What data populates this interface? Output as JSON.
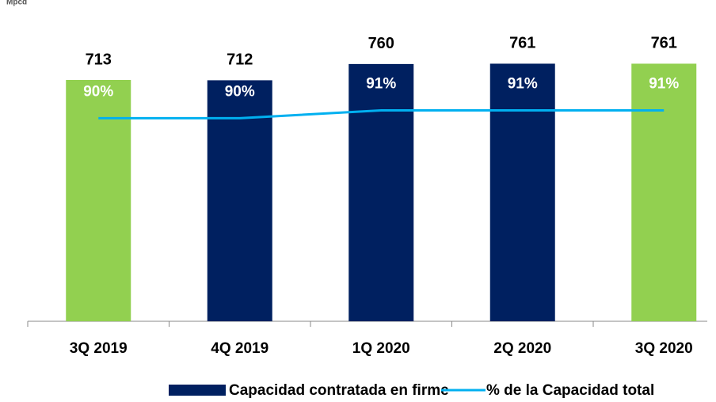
{
  "chart_data": {
    "type": "bar",
    "subtitle": "Mpcd",
    "categories": [
      "3Q 2019",
      "4Q 2019",
      "1Q 2020",
      "2Q 2020",
      "3Q 2020"
    ],
    "series": [
      {
        "name": "Capacidad contratada en firme",
        "color": "#002060",
        "bar_colors": [
          "#92d050",
          "#002060",
          "#002060",
          "#002060",
          "#92d050"
        ],
        "values": [
          713,
          712,
          760,
          761,
          761
        ]
      },
      {
        "name": "% de la Capacidad total",
        "type": "line",
        "axis": "y2",
        "color": "#00b0f0",
        "values": [
          90,
          90,
          91,
          91,
          91
        ],
        "value_labels": [
          "90%",
          "90%",
          "91%",
          "91%",
          "91%"
        ]
      }
    ],
    "ylim": [
      0,
      900
    ],
    "y2lim": [
      64,
      103
    ],
    "legend": "bottom"
  }
}
